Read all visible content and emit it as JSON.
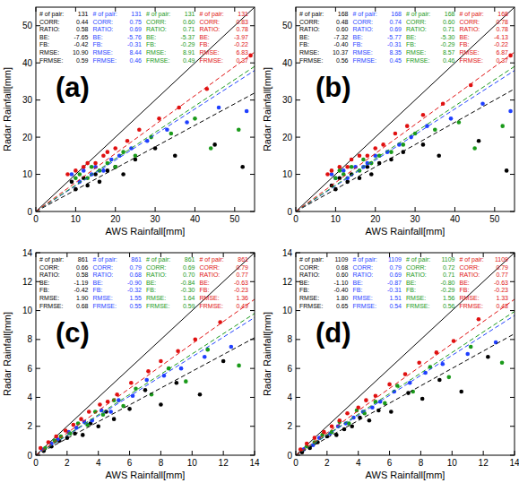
{
  "chart_data": [
    {
      "type": "scatter",
      "title": "(a)",
      "x_label": "AWS Rainfall[mm]",
      "y_label": "Radar Rainfall[mm]",
      "xlim": [
        0,
        55
      ],
      "ylim": [
        0,
        55
      ],
      "xticks": [
        0,
        10,
        20,
        30,
        40,
        50
      ],
      "yticks": [
        0,
        10,
        20,
        30,
        40,
        50
      ],
      "grid": false,
      "stat_names": [
        "# of pair:",
        "CORR:",
        "RATIO:",
        "BE:",
        "FB:",
        "RMSE:",
        "FRMSE:"
      ],
      "series": [
        {
          "color": "#000000",
          "stats": [
            131,
            0.44,
            0.58,
            -7.65,
            -0.42,
            10.9,
            0.59
          ],
          "stat_labels": [
            "131",
            "0.44",
            "0.58",
            "-7.65",
            "-0.42",
            "10.90",
            "0.59"
          ],
          "x": [
            9,
            10,
            12,
            13,
            15,
            16,
            18,
            20,
            22,
            25,
            30,
            35,
            45,
            52
          ],
          "values": [
            8,
            6,
            9,
            7,
            10,
            8,
            11,
            12,
            10,
            14,
            17,
            15,
            18,
            12
          ]
        },
        {
          "color": "#1f3fff",
          "stats": [
            131,
            0.75,
            0.69,
            -5.76,
            -0.31,
            8.44,
            0.46
          ],
          "stat_labels": [
            "131",
            "0.75",
            "0.69",
            "-5.76",
            "-0.31",
            "8.44",
            "0.46"
          ],
          "x": [
            9,
            11,
            12,
            14,
            15,
            17,
            19,
            21,
            24,
            28,
            33,
            38,
            46,
            53
          ],
          "values": [
            10,
            8,
            11,
            10,
            12,
            11,
            14,
            15,
            17,
            19,
            22,
            24,
            28,
            27
          ]
        },
        {
          "color": "#1a9a1a",
          "stats": [
            131,
            0.6,
            0.71,
            -5.37,
            -0.29,
            8.91,
            0.49
          ],
          "stat_labels": [
            "131",
            "0.60",
            "0.71",
            "-5.37",
            "-0.29",
            "8.91",
            "0.49"
          ],
          "x": [
            10,
            11,
            13,
            14,
            16,
            18,
            20,
            22,
            25,
            29,
            34,
            40,
            44,
            51
          ],
          "values": [
            9,
            10,
            9,
            12,
            11,
            13,
            12,
            16,
            15,
            20,
            21,
            25,
            17,
            22
          ]
        },
        {
          "color": "#e01010",
          "stats": [
            131,
            0.83,
            0.78,
            -3.97,
            -0.22,
            6.83,
            0.37
          ],
          "stat_labels": [
            "131",
            "0.83",
            "0.78",
            "-3.97",
            "-0.22",
            "6.83",
            "0.37"
          ],
          "x": [
            8,
            10,
            12,
            13,
            15,
            17,
            18,
            20,
            23,
            26,
            31,
            36,
            43,
            54
          ],
          "values": [
            10,
            11,
            12,
            13,
            13,
            15,
            16,
            17,
            19,
            22,
            25,
            28,
            33,
            42
          ]
        }
      ]
    },
    {
      "type": "scatter",
      "title": "(b)",
      "x_label": "AWS Rainfall[mm]",
      "y_label": "Radar Rainfall[mm]",
      "xlim": [
        0,
        55
      ],
      "ylim": [
        0,
        55
      ],
      "xticks": [
        0,
        10,
        20,
        30,
        40,
        50
      ],
      "yticks": [
        0,
        10,
        20,
        30,
        40,
        50
      ],
      "grid": false,
      "stat_names": [
        "# of pair:",
        "CORR:",
        "RATIO:",
        "BE:",
        "FB:",
        "RMSE:",
        "FRMSE:"
      ],
      "series": [
        {
          "color": "#000000",
          "stats": [
            168,
            0.48,
            0.6,
            -7.32,
            -0.4,
            10.37,
            0.56
          ],
          "stat_labels": [
            "168",
            "0.48",
            "0.60",
            "-7.32",
            "-0.40",
            "10.37",
            "0.56"
          ],
          "x": [
            9,
            10,
            11,
            13,
            14,
            16,
            18,
            19,
            21,
            24,
            27,
            32,
            36,
            46,
            53
          ],
          "values": [
            7,
            6,
            9,
            8,
            10,
            9,
            12,
            10,
            13,
            14,
            16,
            18,
            15,
            19,
            11
          ]
        },
        {
          "color": "#1f3fff",
          "stats": [
            168,
            0.74,
            0.69,
            -5.77,
            -0.31,
            8.35,
            0.45
          ],
          "stat_labels": [
            "168",
            "0.74",
            "0.69",
            "-5.77",
            "-0.31",
            "8.35",
            "0.45"
          ],
          "x": [
            9,
            10,
            12,
            13,
            15,
            17,
            18,
            20,
            23,
            26,
            29,
            33,
            39,
            47,
            54
          ],
          "values": [
            10,
            9,
            11,
            9,
            12,
            12,
            13,
            15,
            16,
            18,
            20,
            23,
            25,
            29,
            27
          ]
        },
        {
          "color": "#1a9a1a",
          "stats": [
            168,
            0.6,
            0.71,
            -5.3,
            -0.29,
            8.57,
            0.46
          ],
          "stat_labels": [
            "168",
            "0.60",
            "0.71",
            "-5.30",
            "-0.29",
            "8.57",
            "0.46"
          ],
          "x": [
            10,
            11,
            12,
            14,
            16,
            17,
            19,
            21,
            24,
            27,
            30,
            35,
            41,
            45,
            52
          ],
          "values": [
            9,
            11,
            10,
            12,
            11,
            14,
            13,
            15,
            16,
            18,
            21,
            22,
            24,
            17,
            23
          ]
        },
        {
          "color": "#e01010",
          "stats": [
            168,
            0.78,
            0.78,
            -4.13,
            -0.22,
            6.87,
            0.37
          ],
          "stat_labels": [
            "168",
            "0.78",
            "0.78",
            "-4.13",
            "-0.22",
            "6.87",
            "0.37"
          ],
          "x": [
            8,
            9,
            11,
            13,
            14,
            16,
            18,
            20,
            22,
            25,
            28,
            32,
            37,
            44,
            54
          ],
          "values": [
            10,
            11,
            12,
            12,
            14,
            15,
            15,
            17,
            18,
            21,
            23,
            26,
            29,
            34,
            42
          ]
        }
      ]
    },
    {
      "type": "scatter",
      "title": "(c)",
      "x_label": "AWS Rainfall[mm]",
      "y_label": "Radar Rainfall[mm]",
      "xlim": [
        0,
        14
      ],
      "ylim": [
        0,
        14
      ],
      "xticks": [
        0,
        2,
        4,
        6,
        8,
        10,
        12,
        14
      ],
      "yticks": [
        0,
        2,
        4,
        6,
        8,
        10,
        12,
        14
      ],
      "grid": false,
      "stat_names": [
        "# of pair:",
        "CORR:",
        "RATIO:",
        "BE:",
        "FB:",
        "RMSE:",
        "FRMSE:"
      ],
      "series": [
        {
          "color": "#000000",
          "stats": [
            861,
            0.66,
            0.58,
            -1.19,
            -0.42,
            1.9,
            0.68
          ],
          "stat_labels": [
            "861",
            "0.66",
            "0.58",
            "-1.19",
            "-0.42",
            "1.90",
            "0.68"
          ],
          "x": [
            0.5,
            1,
            1.5,
            2,
            2.5,
            3,
            3.5,
            4,
            4.5,
            5,
            6,
            7,
            8,
            9,
            10.5,
            12
          ],
          "values": [
            0.3,
            0.6,
            1.0,
            1.2,
            1.5,
            1.4,
            2.2,
            2.0,
            3.0,
            2.5,
            3.2,
            4.5,
            3.5,
            5.0,
            4.2,
            6.5
          ]
        },
        {
          "color": "#1f3fff",
          "stats": [
            861,
            0.79,
            0.68,
            -0.9,
            -0.32,
            1.55,
            0.55
          ],
          "stat_labels": [
            "861",
            "0.79",
            "0.68",
            "-0.90",
            "-0.32",
            "1.55",
            "0.55"
          ],
          "x": [
            0.4,
            1,
            1.4,
            2.1,
            2.6,
            3.1,
            3.6,
            4.2,
            4.8,
            5.3,
            6.2,
            7.1,
            8.2,
            9.3,
            10.8,
            12.5
          ],
          "values": [
            0.4,
            0.8,
            1.1,
            1.6,
            1.9,
            2.3,
            2.4,
            3.1,
            3.0,
            3.8,
            4.1,
            5.2,
            5.5,
            6.0,
            6.8,
            7.5
          ]
        },
        {
          "color": "#1a9a1a",
          "stats": [
            861,
            0.69,
            0.7,
            -0.84,
            -0.3,
            1.64,
            0.59
          ],
          "stat_labels": [
            "861",
            "0.69",
            "0.70",
            "-0.84",
            "-0.30",
            "1.64",
            "0.59"
          ],
          "x": [
            0.6,
            1.2,
            1.6,
            2.2,
            2.7,
            3.3,
            3.8,
            4.3,
            5.0,
            5.6,
            6.4,
            7.4,
            8.5,
            9.6,
            11,
            13
          ],
          "values": [
            0.5,
            1.0,
            1.3,
            1.5,
            2.2,
            2.1,
            3.0,
            2.8,
            3.8,
            3.4,
            4.6,
            4.2,
            6.0,
            5.1,
            7.3,
            6.2
          ]
        },
        {
          "color": "#e01010",
          "stats": [
            861,
            0.79,
            0.77,
            -0.63,
            -0.23,
            1.36,
            0.49
          ],
          "stat_labels": [
            "861",
            "0.79",
            "0.77",
            "-0.63",
            "-0.23",
            "1.36",
            "0.49"
          ],
          "x": [
            0.3,
            0.8,
            1.3,
            1.9,
            2.4,
            2.9,
            3.4,
            4.1,
            4.6,
            5.2,
            6.1,
            7.2,
            8.0,
            9.1,
            10.2,
            11.8
          ],
          "values": [
            0.5,
            0.9,
            1.3,
            1.7,
            2.1,
            2.5,
            3.0,
            3.5,
            3.7,
            4.2,
            5.0,
            5.8,
            6.5,
            7.2,
            8.0,
            9.2
          ]
        }
      ]
    },
    {
      "type": "scatter",
      "title": "(d)",
      "x_label": "AWS Rainfall[mm]",
      "y_label": "Radar Rainfall[mm]",
      "xlim": [
        0,
        14
      ],
      "ylim": [
        0,
        14
      ],
      "xticks": [
        0,
        2,
        4,
        6,
        8,
        10,
        12,
        14
      ],
      "yticks": [
        0,
        2,
        4,
        6,
        8,
        10,
        12,
        14
      ],
      "grid": false,
      "stat_names": [
        "# of pair:",
        "CORR:",
        "RATIO:",
        "BE:",
        "FB:",
        "RMSE:",
        "FRMSE:"
      ],
      "series": [
        {
          "color": "#000000",
          "stats": [
            1109,
            0.68,
            0.6,
            -1.1,
            -0.4,
            1.8,
            0.65
          ],
          "stat_labels": [
            "1109",
            "0.68",
            "0.60",
            "-1.10",
            "-0.40",
            "1.80",
            "0.65"
          ],
          "x": [
            0.4,
            0.9,
            1.4,
            2.0,
            2.6,
            3.1,
            3.6,
            4.1,
            4.7,
            5.3,
            6.1,
            7.2,
            8.1,
            9.2,
            10.6,
            12.3
          ],
          "values": [
            0.2,
            0.5,
            0.9,
            1.3,
            1.4,
            1.8,
            2.0,
            2.6,
            2.4,
            3.1,
            3.0,
            4.3,
            3.9,
            5.2,
            4.4,
            6.8
          ]
        },
        {
          "color": "#1f3fff",
          "stats": [
            1109,
            0.79,
            0.69,
            -0.87,
            -0.31,
            1.51,
            0.54
          ],
          "stat_labels": [
            "1109",
            "0.79",
            "0.69",
            "-0.87",
            "-0.31",
            "1.51",
            "0.54"
          ],
          "x": [
            0.5,
            1.1,
            1.5,
            2.2,
            2.7,
            3.2,
            3.7,
            4.3,
            4.9,
            5.4,
            6.3,
            7.3,
            8.3,
            9.4,
            11.0,
            12.8
          ],
          "values": [
            0.4,
            0.7,
            1.2,
            1.5,
            2.0,
            2.2,
            2.6,
            3.0,
            3.3,
            3.7,
            4.4,
            5.0,
            5.7,
            6.3,
            7.0,
            7.8
          ]
        },
        {
          "color": "#1a9a1a",
          "stats": [
            1109,
            0.72,
            0.71,
            -0.8,
            -0.29,
            1.56,
            0.56
          ],
          "stat_labels": [
            "1109",
            "0.72",
            "0.71",
            "-0.80",
            "-0.29",
            "1.56",
            "0.56"
          ],
          "x": [
            0.7,
            1.2,
            1.7,
            2.3,
            2.8,
            3.4,
            3.9,
            4.4,
            5.1,
            5.7,
            6.5,
            7.5,
            8.6,
            9.8,
            11.2,
            13.2
          ],
          "values": [
            0.6,
            0.9,
            1.4,
            1.6,
            2.3,
            2.2,
            3.1,
            2.9,
            3.7,
            3.6,
            4.8,
            4.4,
            6.1,
            5.4,
            7.5,
            6.4
          ]
        },
        {
          "color": "#e01010",
          "stats": [
            1109,
            0.79,
            0.77,
            -0.63,
            -0.23,
            1.33,
            0.48
          ],
          "stat_labels": [
            "1109",
            "0.79",
            "0.77",
            "-0.63",
            "-0.23",
            "1.33",
            "0.48"
          ],
          "x": [
            0.3,
            0.7,
            1.2,
            1.8,
            2.3,
            2.8,
            3.3,
            4.0,
            4.5,
            5.1,
            6.0,
            7.0,
            7.9,
            9.0,
            10.1,
            11.7
          ],
          "values": [
            0.4,
            0.8,
            1.2,
            1.6,
            2.0,
            2.4,
            2.9,
            3.3,
            3.8,
            4.1,
            4.9,
            5.6,
            6.4,
            7.1,
            7.9,
            9.4
          ]
        }
      ]
    }
  ]
}
